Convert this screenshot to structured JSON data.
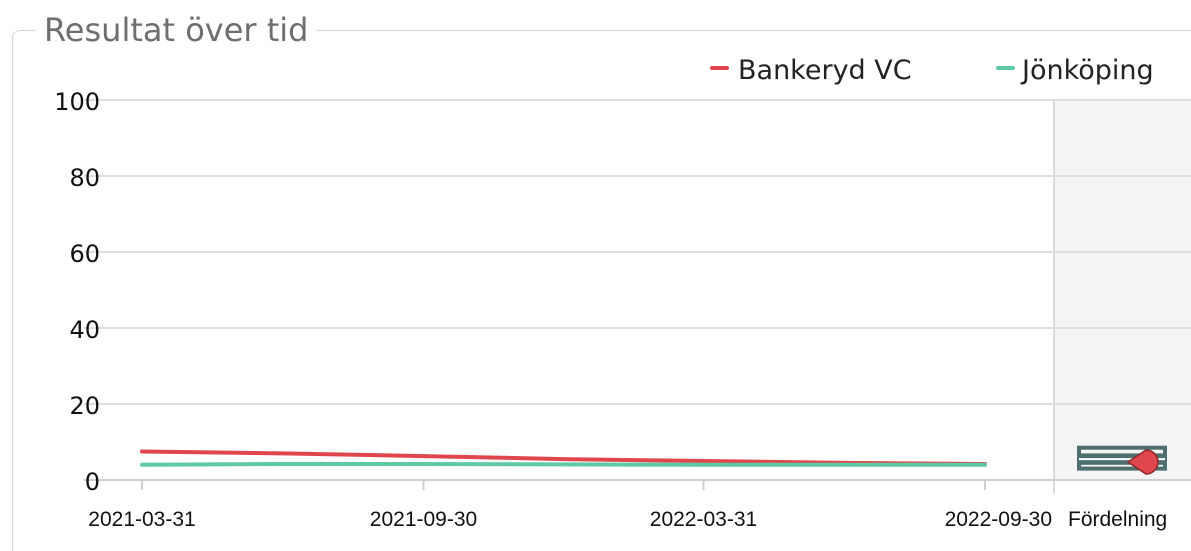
{
  "panel": {
    "title": "Resultat över tid"
  },
  "chart_data": {
    "type": "line",
    "title": "Resultat över tid",
    "xlabel": "",
    "ylabel": "",
    "ylim": [
      0,
      100
    ],
    "yticks": [
      0,
      20,
      40,
      60,
      80,
      100
    ],
    "x": [
      "2021-03-31",
      "2021-06-30",
      "2021-09-30",
      "2021-12-31",
      "2022-03-31",
      "2022-06-30",
      "2022-09-30"
    ],
    "xtick_labels": [
      "2021-03-31",
      "2021-09-30",
      "2022-03-31",
      "2022-09-30"
    ],
    "grid": true,
    "legend_position": "top-right",
    "series": [
      {
        "name": "Bankeryd VC",
        "color": "#e0474c",
        "values": [
          7.5,
          7.0,
          6.3,
          5.5,
          5.0,
          4.5,
          4.2
        ]
      },
      {
        "name": "Jönköping",
        "color": "#5dc9a5",
        "values": [
          4.0,
          4.2,
          4.2,
          4.1,
          4.0,
          4.0,
          4.0
        ]
      }
    ],
    "distribution": {
      "label": "Fördelning",
      "box_color": "#4f6f6f",
      "marker_color": "#e0474c",
      "low": 3.0,
      "high": 8.5,
      "inner_low": 4.0,
      "inner_high": 7.0,
      "marker_value": 4.2
    }
  }
}
